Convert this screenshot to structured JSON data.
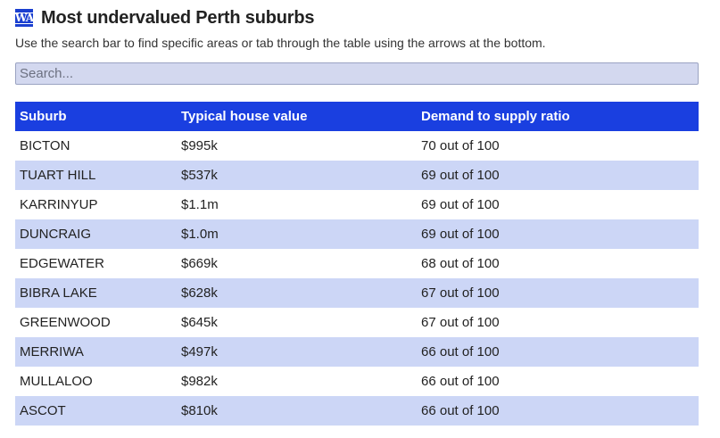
{
  "header": {
    "logo_text": "WA",
    "title": "Most undervalued Perth suburbs",
    "subtitle": "Use the search bar to find specific areas or tab through the table using the arrows at the bottom."
  },
  "search": {
    "placeholder": "Search...",
    "value": ""
  },
  "table": {
    "columns": [
      "Suburb",
      "Typical house value",
      "Demand to supply ratio"
    ],
    "rows": [
      [
        "BICTON",
        "$995k",
        "70 out of 100"
      ],
      [
        "TUART HILL",
        "$537k",
        "69 out of 100"
      ],
      [
        "KARRINYUP",
        "$1.1m",
        "69 out of 100"
      ],
      [
        "DUNCRAIG",
        "$1.0m",
        "69 out of 100"
      ],
      [
        "EDGEWATER",
        "$669k",
        "68 out of 100"
      ],
      [
        "BIBRA LAKE",
        "$628k",
        "67 out of 100"
      ],
      [
        "GREENWOOD",
        "$645k",
        "67 out of 100"
      ],
      [
        "MERRIWA",
        "$497k",
        "66 out of 100"
      ],
      [
        "MULLALOO",
        "$982k",
        "66 out of 100"
      ],
      [
        "ASCOT",
        "$810k",
        "66 out of 100"
      ]
    ]
  },
  "colors": {
    "header_bg": "#1a3fe0",
    "stripe_bg": "#ccd6f6",
    "search_bg": "#d3d8ef"
  }
}
